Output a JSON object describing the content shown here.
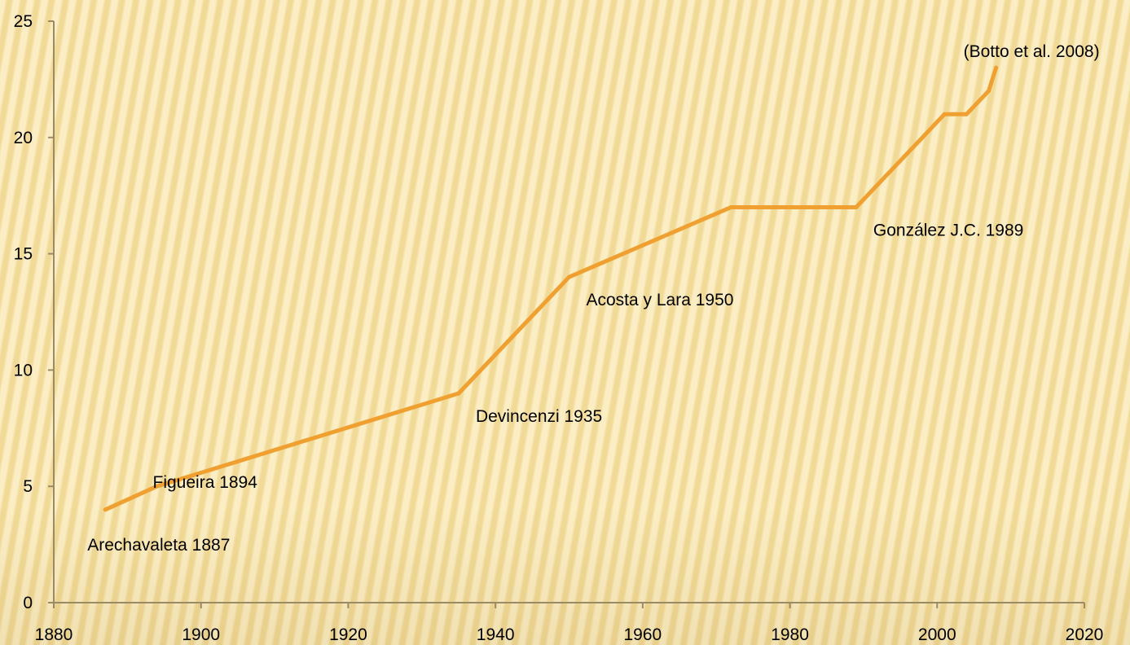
{
  "chart_data": {
    "type": "line",
    "title": "",
    "xlabel": "",
    "ylabel": "",
    "xlim": [
      1880,
      2020
    ],
    "ylim": [
      0,
      25
    ],
    "x_ticks": [
      1880,
      1900,
      1920,
      1940,
      1960,
      1980,
      2000,
      2020
    ],
    "y_ticks": [
      0,
      5,
      10,
      15,
      20,
      25
    ],
    "grid": false,
    "legend": "none",
    "series": [
      {
        "color": "#f0a030",
        "points": [
          {
            "x": 1887,
            "y": 4
          },
          {
            "x": 1894,
            "y": 5
          },
          {
            "x": 1935,
            "y": 9
          },
          {
            "x": 1950,
            "y": 14
          },
          {
            "x": 1972,
            "y": 17
          },
          {
            "x": 1989,
            "y": 17
          },
          {
            "x": 2001,
            "y": 21
          },
          {
            "x": 2004,
            "y": 21
          },
          {
            "x": 2007,
            "y": 22
          },
          {
            "x": 2008,
            "y": 23
          }
        ]
      }
    ],
    "annotations": [
      {
        "text": "Arechavaleta 1887",
        "x": 1887,
        "y": 4,
        "anchor": "below"
      },
      {
        "text": "Figueira 1894",
        "x": 1894,
        "y": 5,
        "anchor": "right"
      },
      {
        "text": "Devincenzi 1935",
        "x": 1935,
        "y": 9,
        "anchor": "below-right"
      },
      {
        "text": "Acosta y Lara 1950",
        "x": 1950,
        "y": 14,
        "anchor": "below-right"
      },
      {
        "text": "González J.C. 1989",
        "x": 1989,
        "y": 17,
        "anchor": "below-right"
      },
      {
        "text": "(Botto et al. 2008)",
        "x": 2008,
        "y": 23,
        "anchor": "above"
      }
    ]
  }
}
